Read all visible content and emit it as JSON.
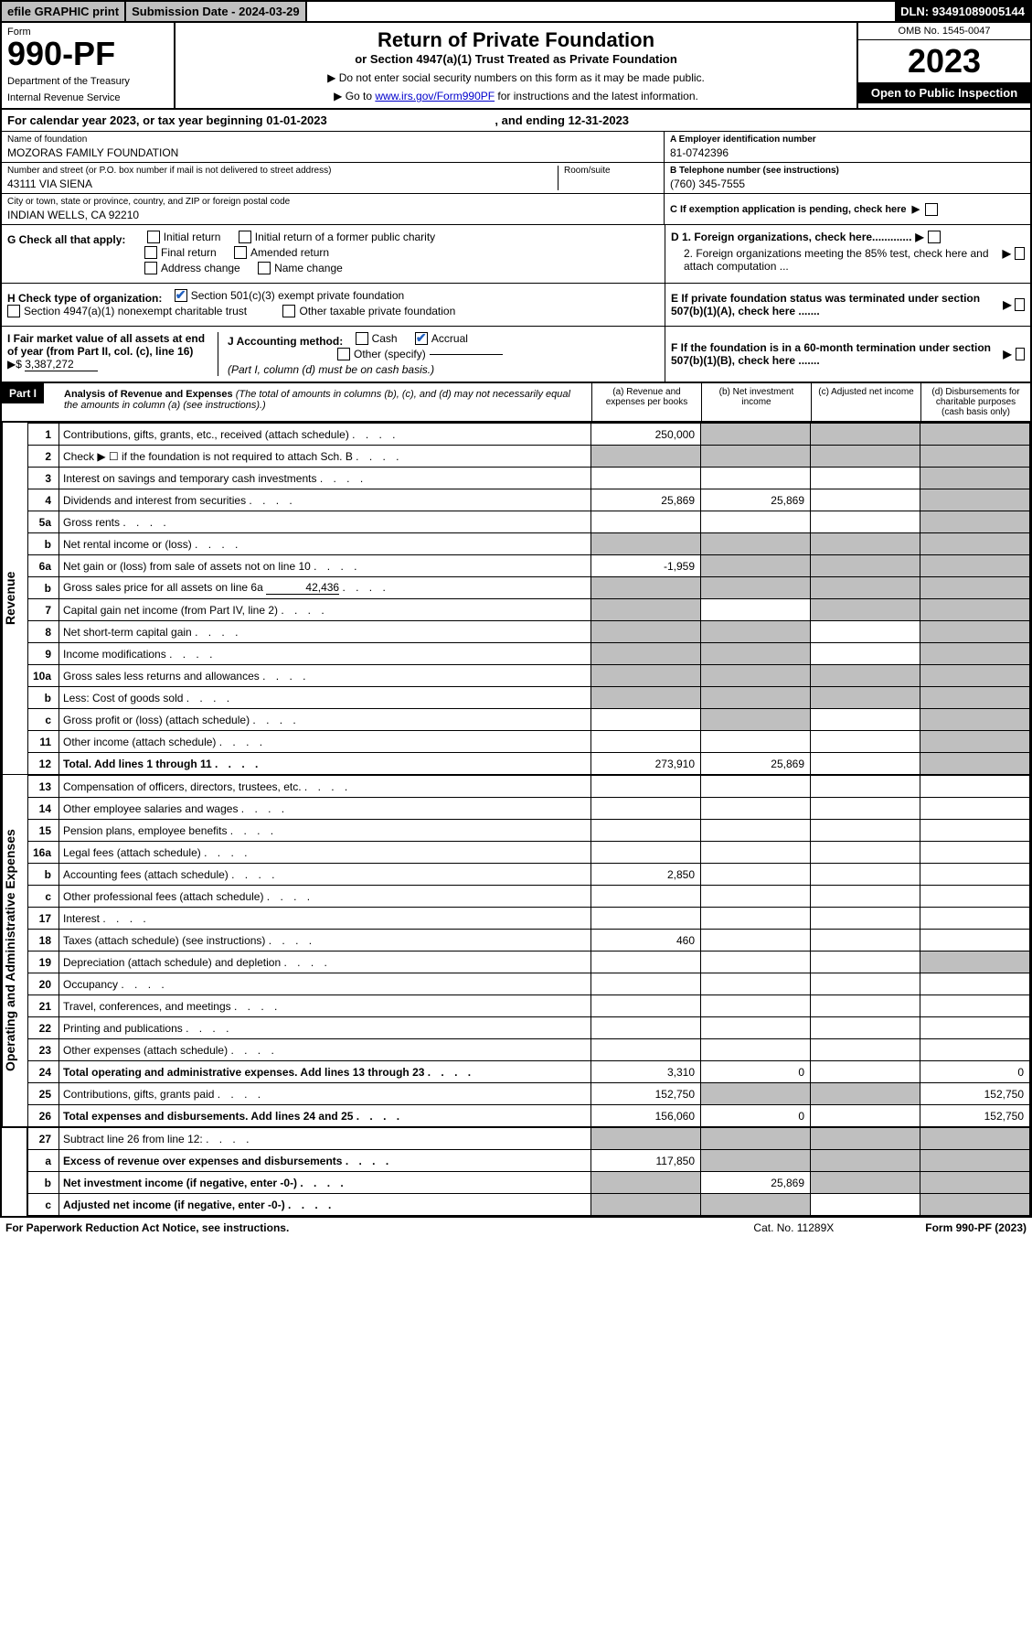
{
  "topbar": {
    "efile": "efile GRAPHIC print",
    "subdate_label": "Submission Date - ",
    "subdate": "2024-03-29",
    "dln_label": "DLN: ",
    "dln": "93491089005144"
  },
  "header": {
    "form_label": "Form",
    "form_num": "990-PF",
    "dept1": "Department of the Treasury",
    "dept2": "Internal Revenue Service",
    "title": "Return of Private Foundation",
    "subtitle": "or Section 4947(a)(1) Trust Treated as Private Foundation",
    "instr1": "▶ Do not enter social security numbers on this form as it may be made public.",
    "instr2_pre": "▶ Go to ",
    "instr2_link": "www.irs.gov/Form990PF",
    "instr2_post": " for instructions and the latest information.",
    "omb": "OMB No. 1545-0047",
    "year": "2023",
    "open": "Open to Public Inspection"
  },
  "calyear": {
    "pre": "For calendar year 2023, or tax year beginning ",
    "begin": "01-01-2023",
    "mid": " , and ending ",
    "end": "12-31-2023"
  },
  "name": {
    "label": "Name of foundation",
    "value": "MOZORAS FAMILY FOUNDATION"
  },
  "ein": {
    "label": "A Employer identification number",
    "value": "81-0742396"
  },
  "street": {
    "label": "Number and street (or P.O. box number if mail is not delivered to street address)",
    "room_label": "Room/suite",
    "value": "43111 VIA SIENA"
  },
  "phone": {
    "label": "B Telephone number (see instructions)",
    "value": "(760) 345-7555"
  },
  "city": {
    "label": "City or town, state or province, country, and ZIP or foreign postal code",
    "value": "INDIAN WELLS, CA  92210"
  },
  "boxC": "C If exemption application is pending, check here",
  "boxG": {
    "label": "G Check all that apply:",
    "opts": [
      "Initial return",
      "Initial return of a former public charity",
      "Final return",
      "Amended return",
      "Address change",
      "Name change"
    ]
  },
  "boxD": {
    "d1": "D 1. Foreign organizations, check here.............",
    "d2": "2. Foreign organizations meeting the 85% test, check here and attach computation ..."
  },
  "boxH": {
    "label": "H Check type of organization:",
    "opt1": "Section 501(c)(3) exempt private foundation",
    "opt2": "Section 4947(a)(1) nonexempt charitable trust",
    "opt3": "Other taxable private foundation"
  },
  "boxE": "E If private foundation status was terminated under section 507(b)(1)(A), check here .......",
  "boxI": {
    "label": "I Fair market value of all assets at end of year (from Part II, col. (c), line 16) ",
    "arrow": "▶$ ",
    "value": "3,387,272"
  },
  "boxJ": {
    "label": "J Accounting method:",
    "cash": "Cash",
    "accrual": "Accrual",
    "other": "Other (specify)",
    "note": "(Part I, column (d) must be on cash basis.)"
  },
  "boxF": "F If the foundation is in a 60-month termination under section 507(b)(1)(B), check here .......",
  "part1": {
    "label": "Part I",
    "title": "Analysis of Revenue and Expenses",
    "note": " (The total of amounts in columns (b), (c), and (d) may not necessarily equal the amounts in column (a) (see instructions).)",
    "col_a": "(a) Revenue and expenses per books",
    "col_b": "(b) Net investment income",
    "col_c": "(c) Adjusted net income",
    "col_d": "(d) Disbursements for charitable purposes (cash basis only)"
  },
  "side_rev": "Revenue",
  "side_exp": "Operating and Administrative Expenses",
  "rows": {
    "r1": {
      "n": "1",
      "d": "Contributions, gifts, grants, etc., received (attach schedule)",
      "a": "250,000"
    },
    "r2": {
      "n": "2",
      "d": "Check ▶ ☐ if the foundation is not required to attach Sch. B"
    },
    "r3": {
      "n": "3",
      "d": "Interest on savings and temporary cash investments"
    },
    "r4": {
      "n": "4",
      "d": "Dividends and interest from securities",
      "a": "25,869",
      "b": "25,869"
    },
    "r5a": {
      "n": "5a",
      "d": "Gross rents"
    },
    "r5b": {
      "n": "b",
      "d": "Net rental income or (loss)"
    },
    "r6a": {
      "n": "6a",
      "d": "Net gain or (loss) from sale of assets not on line 10",
      "a": "-1,959"
    },
    "r6b": {
      "n": "b",
      "d": "Gross sales price for all assets on line 6a",
      "inline": "42,436"
    },
    "r7": {
      "n": "7",
      "d": "Capital gain net income (from Part IV, line 2)"
    },
    "r8": {
      "n": "8",
      "d": "Net short-term capital gain"
    },
    "r9": {
      "n": "9",
      "d": "Income modifications"
    },
    "r10a": {
      "n": "10a",
      "d": "Gross sales less returns and allowances"
    },
    "r10b": {
      "n": "b",
      "d": "Less: Cost of goods sold"
    },
    "r10c": {
      "n": "c",
      "d": "Gross profit or (loss) (attach schedule)"
    },
    "r11": {
      "n": "11",
      "d": "Other income (attach schedule)"
    },
    "r12": {
      "n": "12",
      "d": "Total. Add lines 1 through 11",
      "a": "273,910",
      "b": "25,869",
      "bold": true
    },
    "r13": {
      "n": "13",
      "d": "Compensation of officers, directors, trustees, etc."
    },
    "r14": {
      "n": "14",
      "d": "Other employee salaries and wages"
    },
    "r15": {
      "n": "15",
      "d": "Pension plans, employee benefits"
    },
    "r16a": {
      "n": "16a",
      "d": "Legal fees (attach schedule)"
    },
    "r16b": {
      "n": "b",
      "d": "Accounting fees (attach schedule)",
      "a": "2,850"
    },
    "r16c": {
      "n": "c",
      "d": "Other professional fees (attach schedule)"
    },
    "r17": {
      "n": "17",
      "d": "Interest"
    },
    "r18": {
      "n": "18",
      "d": "Taxes (attach schedule) (see instructions)",
      "a": "460"
    },
    "r19": {
      "n": "19",
      "d": "Depreciation (attach schedule) and depletion"
    },
    "r20": {
      "n": "20",
      "d": "Occupancy"
    },
    "r21": {
      "n": "21",
      "d": "Travel, conferences, and meetings"
    },
    "r22": {
      "n": "22",
      "d": "Printing and publications"
    },
    "r23": {
      "n": "23",
      "d": "Other expenses (attach schedule)"
    },
    "r24": {
      "n": "24",
      "d": "Total operating and administrative expenses. Add lines 13 through 23",
      "a": "3,310",
      "b": "0",
      "dd": "0",
      "bold": true
    },
    "r25": {
      "n": "25",
      "d": "Contributions, gifts, grants paid",
      "a": "152,750",
      "dd": "152,750"
    },
    "r26": {
      "n": "26",
      "d": "Total expenses and disbursements. Add lines 24 and 25",
      "a": "156,060",
      "b": "0",
      "dd": "152,750",
      "bold": true
    },
    "r27": {
      "n": "27",
      "d": "Subtract line 26 from line 12:"
    },
    "r27a": {
      "n": "a",
      "d": "Excess of revenue over expenses and disbursements",
      "a": "117,850",
      "bold": true
    },
    "r27b": {
      "n": "b",
      "d": "Net investment income (if negative, enter -0-)",
      "b": "25,869",
      "bold": true
    },
    "r27c": {
      "n": "c",
      "d": "Adjusted net income (if negative, enter -0-)",
      "bold": true
    }
  },
  "footer": {
    "left": "For Paperwork Reduction Act Notice, see instructions.",
    "mid": "Cat. No. 11289X",
    "right": "Form 990-PF (2023)"
  }
}
